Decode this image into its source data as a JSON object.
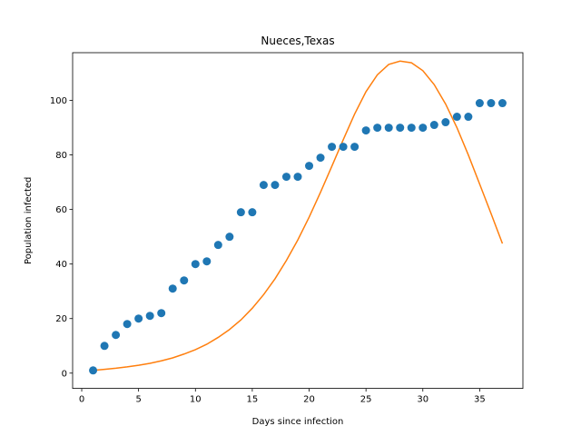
{
  "chart_data": {
    "type": "scatter",
    "title": "Nueces,Texas",
    "xlabel": "Days since infection",
    "ylabel": "Population infected",
    "xlim": [
      -0.8,
      38.8
    ],
    "ylim": [
      -5.6,
      117.5
    ],
    "xticks": [
      0,
      5,
      10,
      15,
      20,
      25,
      30,
      35
    ],
    "yticks": [
      0,
      20,
      40,
      60,
      80,
      100
    ],
    "grid": false,
    "series": [
      {
        "kind": "scatter",
        "color": "#1f77b4",
        "x": [
          1,
          2,
          3,
          4,
          5,
          6,
          7,
          8,
          9,
          10,
          11,
          12,
          13,
          14,
          15,
          16,
          17,
          18,
          19,
          20,
          21,
          22,
          23,
          24,
          25,
          26,
          27,
          28,
          29,
          30,
          31,
          32,
          33,
          34,
          35,
          36,
          37
        ],
        "y": [
          1,
          10,
          14,
          18,
          20,
          21,
          22,
          31,
          34,
          40,
          41,
          47,
          50,
          59,
          59,
          69,
          69,
          72,
          72,
          76,
          79,
          83,
          83,
          83,
          89,
          90,
          90,
          90,
          90,
          90,
          91,
          92,
          94,
          94,
          99,
          99,
          99
        ]
      },
      {
        "kind": "line",
        "color": "#ff7f0e",
        "x": [
          1,
          2,
          3,
          4,
          5,
          6,
          7,
          8,
          9,
          10,
          11,
          12,
          13,
          14,
          15,
          16,
          17,
          18,
          19,
          20,
          21,
          22,
          23,
          24,
          25,
          26,
          27,
          28,
          29,
          30,
          31,
          32,
          33,
          34,
          35,
          36,
          37
        ],
        "y": [
          1.0,
          1.4,
          1.8,
          2.3,
          2.9,
          3.6,
          4.5,
          5.6,
          7.0,
          8.6,
          10.6,
          13.1,
          16.0,
          19.5,
          23.8,
          28.8,
          34.6,
          41.3,
          48.8,
          57.2,
          66.3,
          75.9,
          85.6,
          95.0,
          103.2,
          109.4,
          113.2,
          114.4,
          113.8,
          110.9,
          105.8,
          98.7,
          90.0,
          80.0,
          69.3,
          58.5,
          47.5
        ]
      }
    ]
  }
}
